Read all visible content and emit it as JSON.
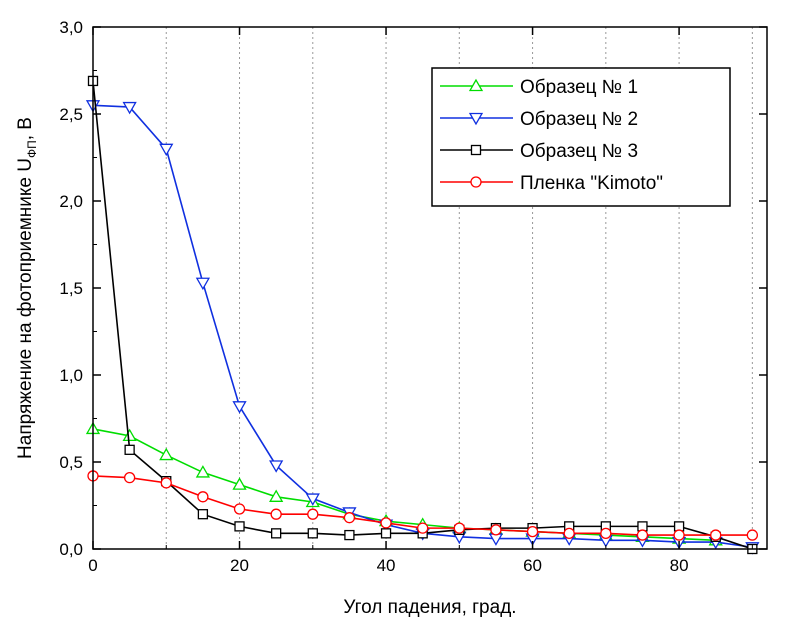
{
  "chart_data": {
    "type": "line",
    "title": "",
    "xlabel": "Угол падения, град.",
    "ylabel_main": "Напряжение на фотоприемнике U",
    "ylabel_sub": "ФП",
    "ylabel_unit": ", В",
    "xlim": [
      0,
      92
    ],
    "ylim": [
      0,
      3.0
    ],
    "x_ticks": [
      0,
      20,
      40,
      60,
      80
    ],
    "x_tick_labels": [
      "0",
      "20",
      "40",
      "60",
      "80"
    ],
    "y_ticks": [
      0,
      0.5,
      1.0,
      1.5,
      2.0,
      2.5,
      3.0
    ],
    "y_tick_labels": [
      "0,0",
      "0,5",
      "1,0",
      "1,5",
      "2,0",
      "2,5",
      "3,0"
    ],
    "grid": "vertical dotted",
    "legend_position": "top-right",
    "x": [
      0,
      5,
      10,
      15,
      20,
      25,
      30,
      35,
      40,
      45,
      50,
      55,
      60,
      65,
      70,
      75,
      80,
      85,
      90
    ],
    "series": [
      {
        "name": "Образец № 1",
        "color": "#00dd00",
        "marker": "triangle-up",
        "x": [
          0,
          5,
          10,
          15,
          20,
          25,
          30,
          35,
          40,
          45,
          50,
          55,
          60,
          65,
          70,
          75,
          80,
          85
        ],
        "values": [
          0.69,
          0.65,
          0.54,
          0.44,
          0.37,
          0.3,
          0.27,
          0.2,
          0.16,
          0.14,
          0.12,
          0.11,
          0.1,
          0.09,
          0.08,
          0.07,
          0.06,
          0.05
        ]
      },
      {
        "name": "Образец № 2",
        "color": "#1030e0",
        "marker": "triangle-down",
        "x": [
          0,
          5,
          10,
          15,
          20,
          25,
          30,
          35,
          40,
          45,
          50,
          55,
          60,
          65,
          70,
          75,
          80,
          85,
          90
        ],
        "values": [
          2.55,
          2.54,
          2.3,
          1.53,
          0.82,
          0.48,
          0.29,
          0.21,
          0.14,
          0.09,
          0.07,
          0.06,
          0.06,
          0.06,
          0.05,
          0.05,
          0.04,
          0.04,
          0.01
        ]
      },
      {
        "name": "Образец № 3",
        "color": "#000000",
        "marker": "square",
        "x": [
          0,
          5,
          10,
          15,
          20,
          25,
          30,
          35,
          40,
          45,
          50,
          55,
          60,
          65,
          70,
          75,
          80,
          85,
          90
        ],
        "values": [
          2.69,
          0.57,
          0.39,
          0.2,
          0.13,
          0.09,
          0.09,
          0.08,
          0.09,
          0.09,
          0.11,
          0.12,
          0.12,
          0.13,
          0.13,
          0.13,
          0.13,
          0.07,
          0.0
        ]
      },
      {
        "name": "Пленка \"Kimoto\"",
        "color": "#ff0000",
        "marker": "circle",
        "x": [
          0,
          5,
          10,
          15,
          20,
          25,
          30,
          35,
          40,
          45,
          50,
          55,
          60,
          65,
          70,
          75,
          80,
          85,
          90
        ],
        "values": [
          0.42,
          0.41,
          0.38,
          0.3,
          0.23,
          0.2,
          0.2,
          0.18,
          0.15,
          0.12,
          0.12,
          0.11,
          0.1,
          0.09,
          0.09,
          0.08,
          0.08,
          0.08,
          0.08
        ]
      }
    ]
  }
}
